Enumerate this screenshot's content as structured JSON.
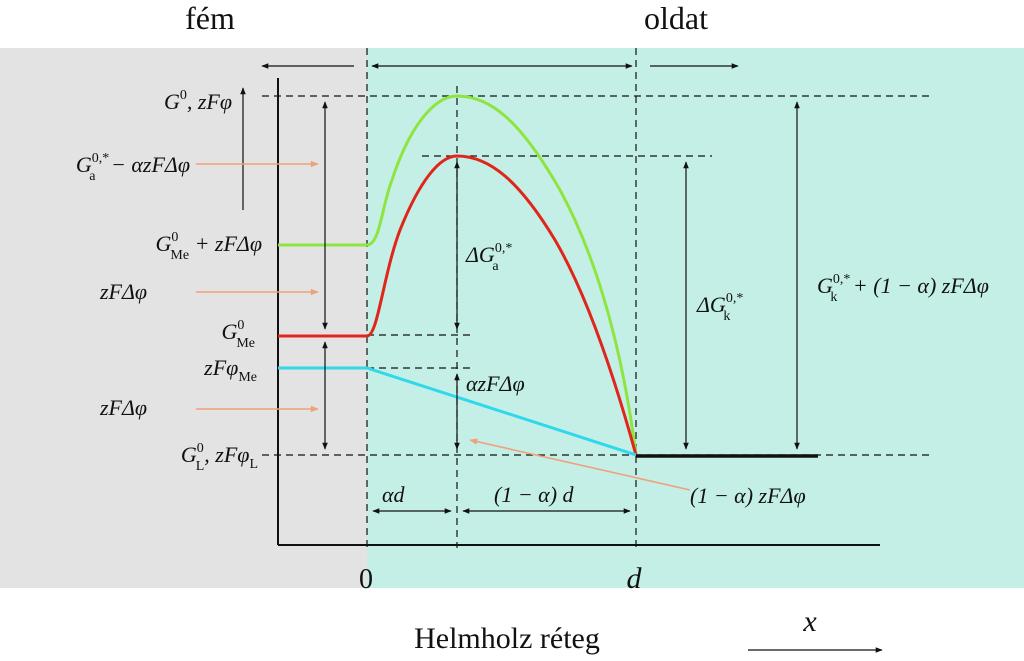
{
  "header": {
    "left_title": "fém",
    "right_title": "oldat"
  },
  "footer": {
    "caption": "Helmholz réteg",
    "axis_label": "x"
  },
  "axis": {
    "origin_label": "0",
    "d_label": "d"
  },
  "labels": {
    "g0": {
      "main": "G",
      "sup": "0",
      "rest": ", zFφ"
    },
    "ga": {
      "main": "G",
      "sub": "a",
      "sup": "0,*",
      "rest": " − αzFΔφ"
    },
    "gme_plus": {
      "main": "G",
      "sub": "Me",
      "sup": "0",
      "rest": " + zFΔφ"
    },
    "zfdphi_1": {
      "text": "zFΔφ"
    },
    "gme": {
      "main": "G",
      "sub": "Me",
      "sup": "0"
    },
    "zfphi_me": {
      "main": "zFφ",
      "sub": "Me"
    },
    "zfdphi_2": {
      "text": "zFΔφ"
    },
    "gl": {
      "main": "G",
      "sub": "L",
      "sup": "0",
      "rest": ", zFφ",
      "sub2": "L"
    },
    "delta_ga": {
      "main": "ΔG",
      "sub": "a",
      "sup": "0,*"
    },
    "alpha_zfdphi": {
      "text": "αzFΔφ"
    },
    "delta_gk": {
      "main": "ΔG",
      "sub": "k",
      "sup": "0,*"
    },
    "gk": {
      "main": "G",
      "sub": "k",
      "sup": "0,*",
      "rest": " + (1 − α) zFΔφ"
    },
    "alpha_d": {
      "text": "αd"
    },
    "one_minus_alpha_d": {
      "text": "(1 − α) d"
    },
    "one_minus_alpha_zfdphi": {
      "text": "(1 − α) zFΔφ"
    }
  },
  "colors": {
    "metal_bg": "#e3e3e3",
    "solution_bg": "#c4efe7",
    "green_curve": "#8ee53f",
    "red_curve": "#e0261b",
    "cyan_line": "#2fd8ea",
    "arrow_orange": "#f0a07c",
    "ink": "#111111"
  }
}
